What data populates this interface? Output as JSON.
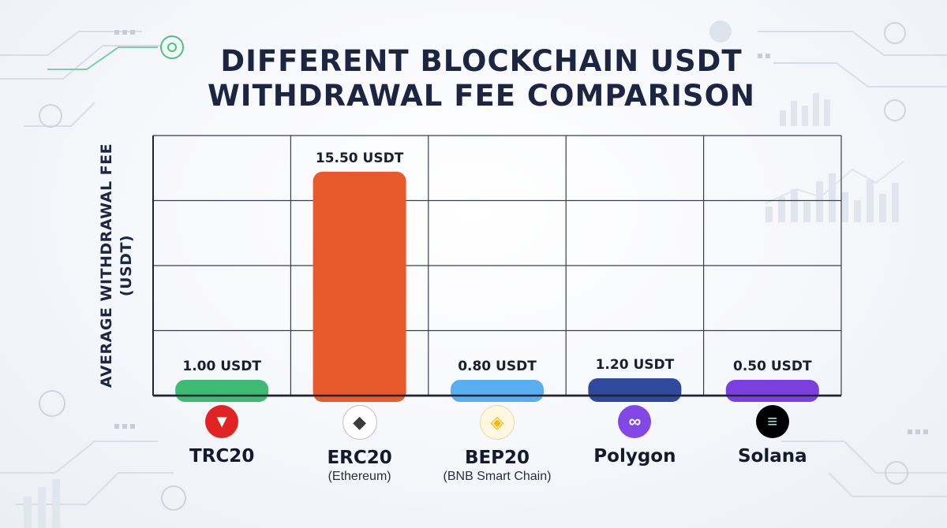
{
  "title_lines": [
    "DIFFERENT BLOCKCHAIN USDT",
    "WITHDRAWAL FEE COMPARISON"
  ],
  "ylabel_lines": [
    "AVERAGE WITHDRAWAL FEE",
    "(USDT)"
  ],
  "chart_data": {
    "type": "bar",
    "title": "DIFFERENT BLOCKCHAIN USDT WITHDRAWAL FEE COMPARISON",
    "ylabel": "AVERAGE WITHDRAWAL FEE (USDT)",
    "xlabel": "",
    "ylim": [
      0,
      18
    ],
    "grid": true,
    "categories": [
      "TRC20",
      "ERC20",
      "BEP20",
      "Polygon",
      "Solana"
    ],
    "subtitles": [
      "",
      "(Ethereum)",
      "(BNB Smart Chain)",
      "",
      ""
    ],
    "values": [
      1.0,
      15.5,
      0.8,
      1.2,
      0.5
    ],
    "value_labels": [
      "1.00 USDT",
      "15.50 USDT",
      "0.80 USDT",
      "1.20 USDT",
      "0.50 USDT"
    ],
    "bar_colors": [
      "#3dbb72",
      "#e85a2c",
      "#58aef0",
      "#2f4a9c",
      "#7b3fe0"
    ],
    "icons": [
      "tron-icon",
      "ethereum-icon",
      "bnb-icon",
      "polygon-icon",
      "solana-icon"
    ],
    "icon_colors": [
      "#e02424",
      "#ffffff",
      "#fff7e0",
      "#8247e5",
      "#000000"
    ]
  }
}
